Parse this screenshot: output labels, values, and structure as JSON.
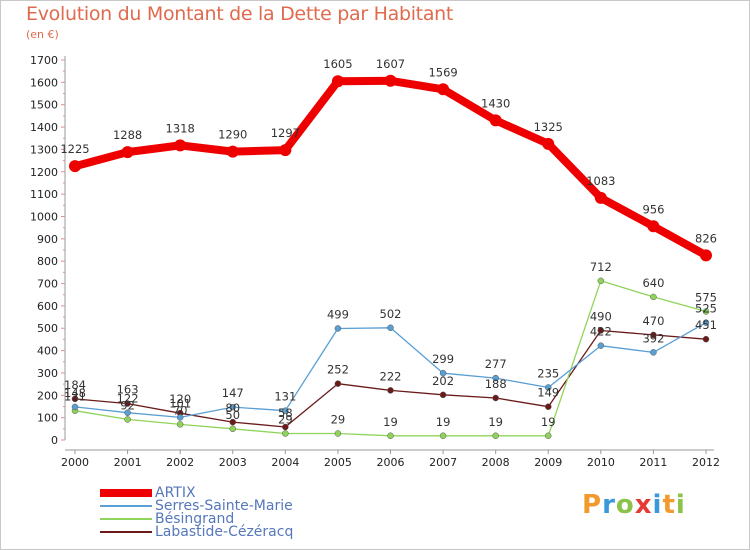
{
  "header": {
    "title": "Evolution du Montant de la Dette par Habitant",
    "subtitle": "(en €)"
  },
  "logo": {
    "text": "Proxiti",
    "colors": [
      "#f29a2e",
      "#3a9ad9",
      "#8bc34a",
      "#e53935",
      "#3a9ad9",
      "#f29a2e",
      "#8bc34a"
    ]
  },
  "chart_data": {
    "type": "line",
    "title": "Evolution du Montant de la Dette par Habitant",
    "subtitle": "(en €)",
    "xlabel": "",
    "ylabel": "",
    "x": [
      "2000",
      "2001",
      "2002",
      "2003",
      "2004",
      "2005",
      "2006",
      "2007",
      "2008",
      "2009",
      "2010",
      "2011",
      "2012"
    ],
    "ylim": [
      0,
      1700
    ],
    "yticks": [
      0,
      100,
      200,
      300,
      400,
      500,
      600,
      700,
      800,
      900,
      1000,
      1100,
      1200,
      1300,
      1400,
      1500,
      1600,
      1700
    ],
    "grid": false,
    "legend_position": "bottom-left",
    "series": [
      {
        "name": "ARTIX",
        "color": "#ee0000",
        "values": [
          1225,
          1288,
          1318,
          1290,
          1297,
          1605,
          1607,
          1569,
          1430,
          1325,
          1083,
          956,
          826
        ],
        "labels": [
          "1225",
          "1288",
          "1318",
          "1290",
          "1297",
          "1605",
          "1607",
          "1569",
          "1430",
          "1325",
          "1083",
          "956",
          "826"
        ]
      },
      {
        "name": "Serres-Sainte-Marie",
        "color": "#5a9fd4",
        "values": [
          148,
          122,
          101,
          147,
          131,
          499,
          502,
          299,
          277,
          235,
          422,
          392,
          525
        ],
        "labels": [
          "148",
          "122",
          "101",
          "147",
          "131",
          "499",
          "502",
          "299",
          "277",
          "235",
          "422",
          "392",
          "525"
        ]
      },
      {
        "name": "Bésingrand",
        "color": "#8fd45a",
        "values": [
          131,
          92,
          70,
          50,
          29,
          29,
          19,
          19,
          19,
          19,
          712,
          640,
          575
        ],
        "labels": [
          "131",
          "92",
          "70",
          "50",
          "29",
          "29",
          "19",
          "19",
          "19",
          "19",
          "712",
          "640",
          "575"
        ]
      },
      {
        "name": "Labastide-Cézéracq",
        "color": "#6b1a1a",
        "values": [
          184,
          163,
          120,
          80,
          58,
          252,
          222,
          202,
          188,
          149,
          490,
          470,
          451
        ],
        "labels": [
          "184",
          "163",
          "120",
          "80",
          "58",
          "252",
          "222",
          "202",
          "188",
          "149",
          "490",
          "470",
          "451"
        ]
      }
    ]
  }
}
